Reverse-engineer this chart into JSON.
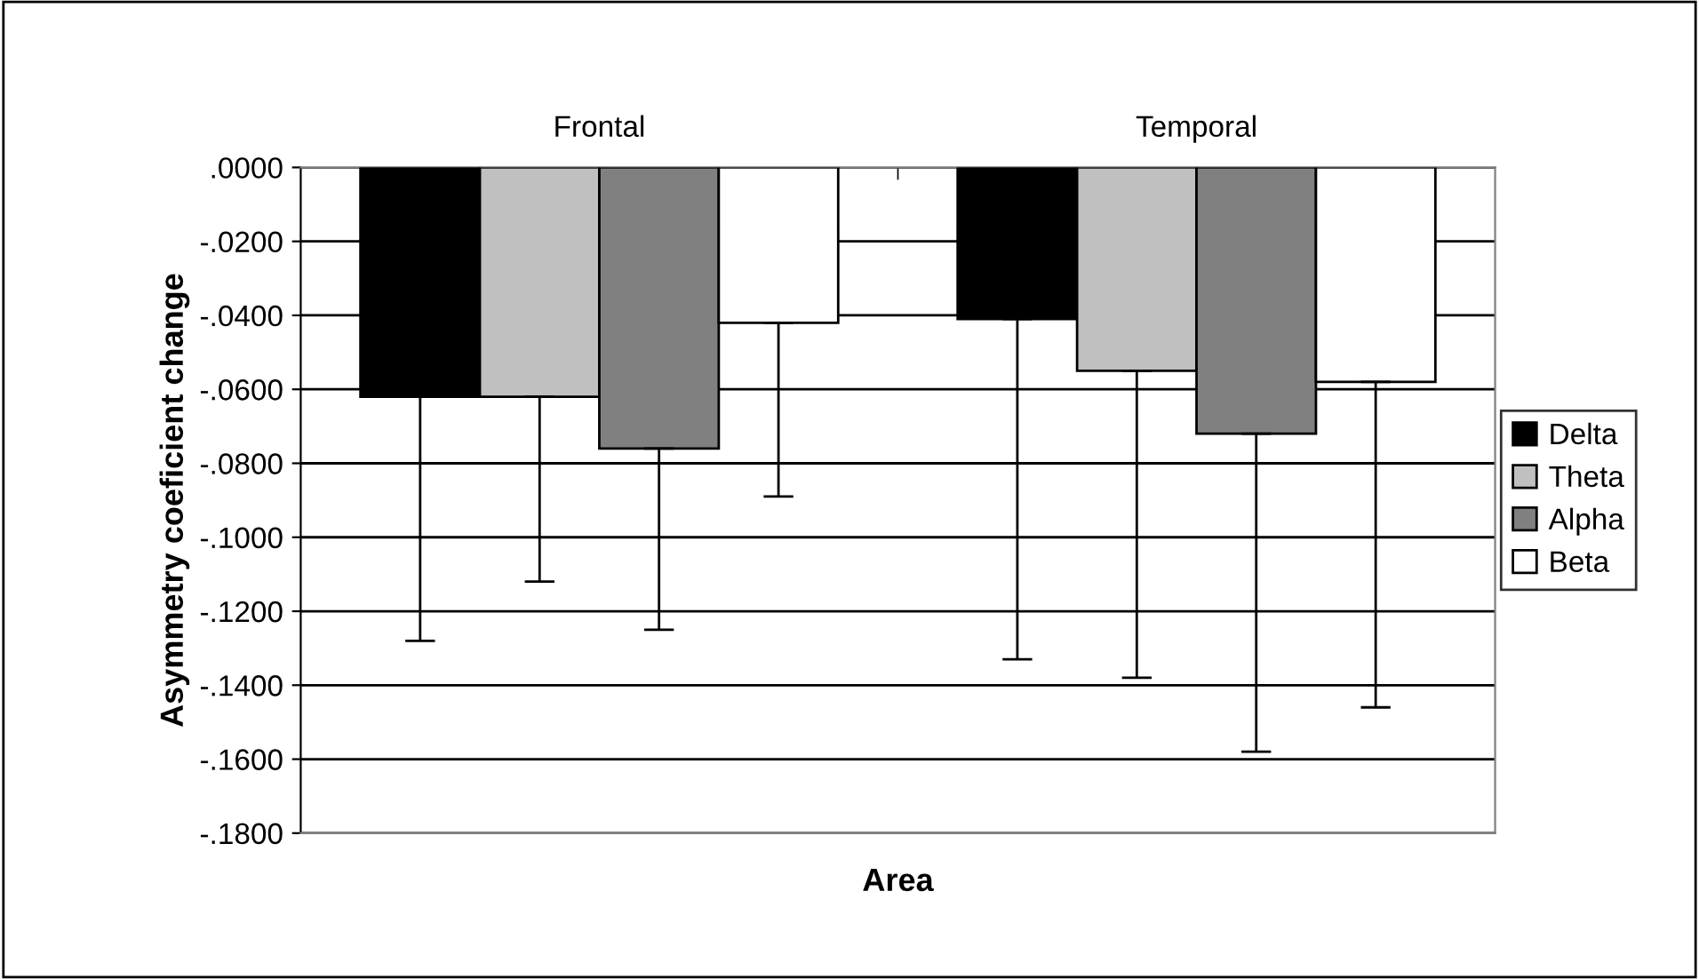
{
  "chart_data": {
    "type": "bar",
    "xlabel": "Area",
    "ylabel": "Asymmetry coeficient change",
    "categories": [
      "Frontal",
      "Temporal"
    ],
    "series": [
      {
        "name": "Delta",
        "color": "#000000",
        "values": [
          -0.062,
          -0.041
        ],
        "errors": [
          [
            -0.128,
            -0.062
          ],
          [
            -0.133,
            -0.041
          ]
        ]
      },
      {
        "name": "Theta",
        "color": "#c0c0c0",
        "values": [
          -0.062,
          -0.055
        ],
        "errors": [
          [
            -0.112,
            -0.062
          ],
          [
            -0.138,
            -0.055
          ]
        ]
      },
      {
        "name": "Alpha",
        "color": "#808080",
        "values": [
          -0.076,
          -0.072
        ],
        "errors": [
          [
            -0.125,
            -0.076
          ],
          [
            -0.158,
            -0.072
          ]
        ]
      },
      {
        "name": "Beta",
        "color": "#ffffff",
        "values": [
          -0.042,
          -0.058
        ],
        "errors": [
          [
            -0.089,
            -0.042
          ],
          [
            -0.146,
            -0.058
          ]
        ]
      }
    ],
    "ylim": [
      -0.18,
      0
    ],
    "yticks": [
      {
        "value": 0,
        "label": ".0000"
      },
      {
        "value": -0.02,
        "label": "-.0200"
      },
      {
        "value": -0.04,
        "label": "-.0400"
      },
      {
        "value": -0.06,
        "label": "-.0600"
      },
      {
        "value": -0.08,
        "label": "-.0800"
      },
      {
        "value": -0.1,
        "label": "-.1000"
      },
      {
        "value": -0.12,
        "label": "-.1200"
      },
      {
        "value": -0.14,
        "label": "-.1400"
      },
      {
        "value": -0.16,
        "label": "-.1600"
      },
      {
        "value": -0.18,
        "label": "-.1800"
      }
    ],
    "grid": "y",
    "legend": "right"
  }
}
